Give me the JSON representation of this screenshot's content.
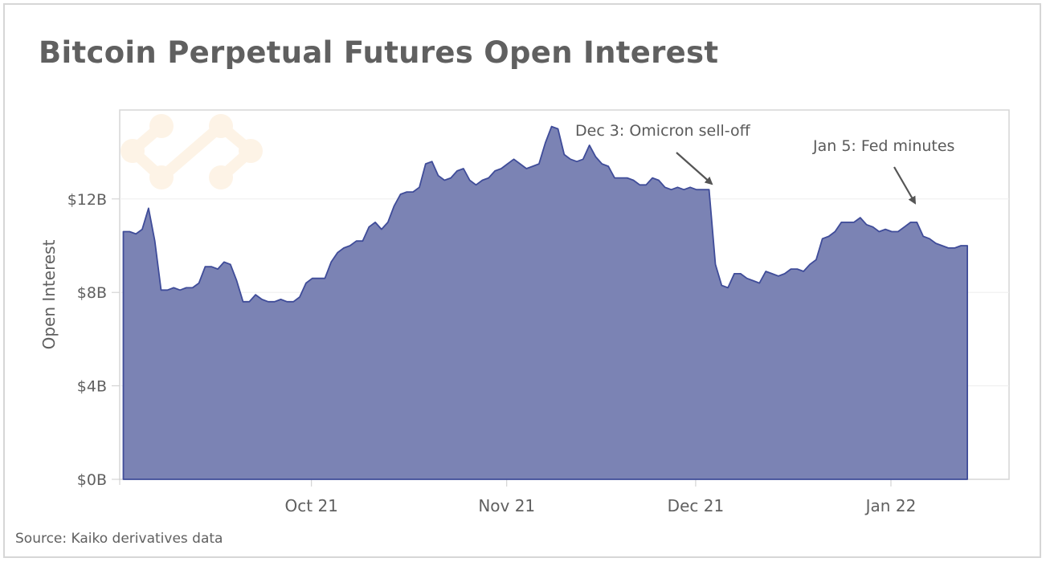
{
  "title": "Bitcoin Perpetual Futures Open Interest",
  "source": "Source: Kaiko derivatives data",
  "colors": {
    "fill": "#7b83b4",
    "stroke": "#3f4c99",
    "grid": "#ededed",
    "text": "#606060",
    "watermark": "#fdf3e6"
  },
  "annotations": [
    {
      "label": "Dec 3: Omicron sell-off",
      "date": "2021-12-03"
    },
    {
      "label": "Jan 5: Fed minutes",
      "date": "2022-01-05"
    }
  ],
  "chart_data": {
    "type": "area",
    "title": "Bitcoin Perpetual Futures Open Interest",
    "xlabel": "",
    "ylabel": "Open Interest",
    "y_unit": "$B",
    "ylim": [
      0,
      15.5
    ],
    "yticks": [
      0,
      4,
      8,
      12
    ],
    "ytick_labels": [
      "$0B",
      "$4B",
      "$8B",
      "$12B"
    ],
    "xtick_labels": [
      "Oct 21",
      "Nov 21",
      "Dec 21",
      "Jan 22"
    ],
    "xtick_dates": [
      "2021-10-01",
      "2021-11-01",
      "2021-12-01",
      "2022-01-01"
    ],
    "grid": true,
    "legend": null,
    "x_start": "2021-09-01",
    "x_end": "2022-01-13",
    "x_step": "1 day",
    "series": [
      {
        "name": "Open Interest",
        "values": [
          10.6,
          10.6,
          10.5,
          10.7,
          11.6,
          10.2,
          8.1,
          8.1,
          8.2,
          8.1,
          8.2,
          8.2,
          8.4,
          9.1,
          9.1,
          9.0,
          9.3,
          9.2,
          8.5,
          7.6,
          7.6,
          7.9,
          7.7,
          7.6,
          7.6,
          7.7,
          7.6,
          7.6,
          7.8,
          8.4,
          8.6,
          8.6,
          8.6,
          9.3,
          9.7,
          9.9,
          10.0,
          10.2,
          10.2,
          10.8,
          11.0,
          10.7,
          11.0,
          11.7,
          12.2,
          12.3,
          12.3,
          12.5,
          13.5,
          13.6,
          13.0,
          12.8,
          12.9,
          13.2,
          13.3,
          12.8,
          12.6,
          12.8,
          12.9,
          13.2,
          13.3,
          13.5,
          13.7,
          13.5,
          13.3,
          13.4,
          13.5,
          14.4,
          15.1,
          15.0,
          13.9,
          13.7,
          13.6,
          13.7,
          14.3,
          13.8,
          13.5,
          13.4,
          12.9,
          12.9,
          12.9,
          12.8,
          12.6,
          12.6,
          12.9,
          12.8,
          12.5,
          12.4,
          12.5,
          12.4,
          12.5,
          12.4,
          12.4,
          12.4,
          9.2,
          8.3,
          8.2,
          8.8,
          8.8,
          8.6,
          8.5,
          8.4,
          8.9,
          8.8,
          8.7,
          8.8,
          9.0,
          9.0,
          8.9,
          9.2,
          9.4,
          10.3,
          10.4,
          10.6,
          11.0,
          11.0,
          11.0,
          11.2,
          10.9,
          10.8,
          10.6,
          10.7,
          10.6,
          10.6,
          10.8,
          11.0,
          11.0,
          10.4,
          10.3,
          10.1,
          10.0,
          9.9,
          9.9,
          10.0,
          10.0
        ]
      }
    ]
  }
}
